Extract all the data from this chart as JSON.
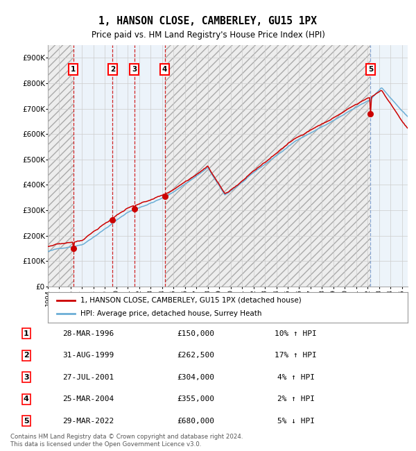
{
  "title": "1, HANSON CLOSE, CAMBERLEY, GU15 1PX",
  "subtitle": "Price paid vs. HM Land Registry's House Price Index (HPI)",
  "ylim": [
    0,
    950000
  ],
  "yticks": [
    0,
    100000,
    200000,
    300000,
    400000,
    500000,
    600000,
    700000,
    800000,
    900000
  ],
  "ytick_labels": [
    "£0",
    "£100K",
    "£200K",
    "£300K",
    "£400K",
    "£500K",
    "£600K",
    "£700K",
    "£800K",
    "£900K"
  ],
  "hpi_color": "#6baed6",
  "price_color": "#cc0000",
  "marker_color": "#cc0000",
  "vline_color_sale": "#cc0000",
  "bg_color": "#ddeaf7",
  "plot_bg": "#ffffff",
  "hatch_color": "#cccccc",
  "grid_color": "#cccccc",
  "sale_dates_num": [
    1996.23,
    1999.66,
    2001.56,
    2004.23,
    2022.25
  ],
  "sale_prices": [
    150000,
    262500,
    304000,
    355000,
    680000
  ],
  "sale_labels": [
    "1",
    "2",
    "3",
    "4",
    "5"
  ],
  "transactions": [
    {
      "label": "1",
      "date": "28-MAR-1996",
      "price": "£150,000",
      "hpi": "10% ↑ HPI"
    },
    {
      "label": "2",
      "date": "31-AUG-1999",
      "price": "£262,500",
      "hpi": "17% ↑ HPI"
    },
    {
      "label": "3",
      "date": "27-JUL-2001",
      "price": "£304,000",
      "hpi": "4% ↑ HPI"
    },
    {
      "label": "4",
      "date": "25-MAR-2004",
      "price": "£355,000",
      "hpi": "2% ↑ HPI"
    },
    {
      "label": "5",
      "date": "29-MAR-2022",
      "price": "£680,000",
      "hpi": "5% ↓ HPI"
    }
  ],
  "legend_line1": "1, HANSON CLOSE, CAMBERLEY, GU15 1PX (detached house)",
  "legend_line2": "HPI: Average price, detached house, Surrey Heath",
  "footer": "Contains HM Land Registry data © Crown copyright and database right 2024.\nThis data is licensed under the Open Government Licence v3.0.",
  "xmin": 1994.0,
  "xmax": 2025.5
}
